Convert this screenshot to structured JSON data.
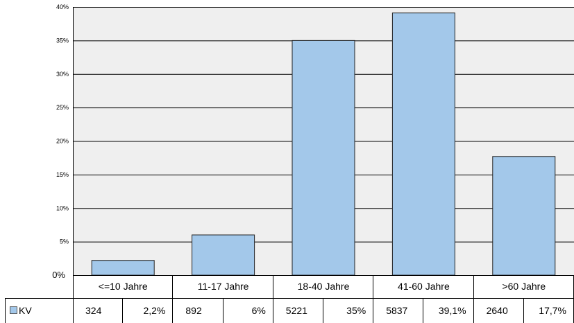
{
  "chart_data": {
    "type": "bar",
    "categories": [
      "<=10 Jahre",
      "11-17 Jahre",
      "18-40 Jahre",
      "41-60 Jahre",
      ">60 Jahre"
    ],
    "series": [
      {
        "name": "KV",
        "values": [
          2.2,
          6,
          35,
          39.1,
          17.7
        ],
        "value_labels": [
          "2,2%",
          "6%",
          "35%",
          "39,1%",
          "17,7%"
        ],
        "counts": [
          "324",
          "892",
          "5221",
          "5837",
          "2640"
        ]
      }
    ],
    "ylim": [
      0,
      40
    ],
    "y_ticks": [
      {
        "value": 40,
        "label": "40%"
      },
      {
        "value": 35,
        "label": "35%"
      },
      {
        "value": 30,
        "label": "30%"
      },
      {
        "value": 25,
        "label": "25%"
      },
      {
        "value": 20,
        "label": "20%"
      },
      {
        "value": 15,
        "label": "15%"
      },
      {
        "value": 10,
        "label": "10%"
      },
      {
        "value": 5,
        "label": "5%"
      },
      {
        "value": 0,
        "label": "0%"
      }
    ],
    "grid": true,
    "legend": "data-table",
    "colors": {
      "bar_fill": "#a3c8ea",
      "bar_stroke": "#222222",
      "plot_bg": "#efefef",
      "grid": "#000000"
    }
  }
}
